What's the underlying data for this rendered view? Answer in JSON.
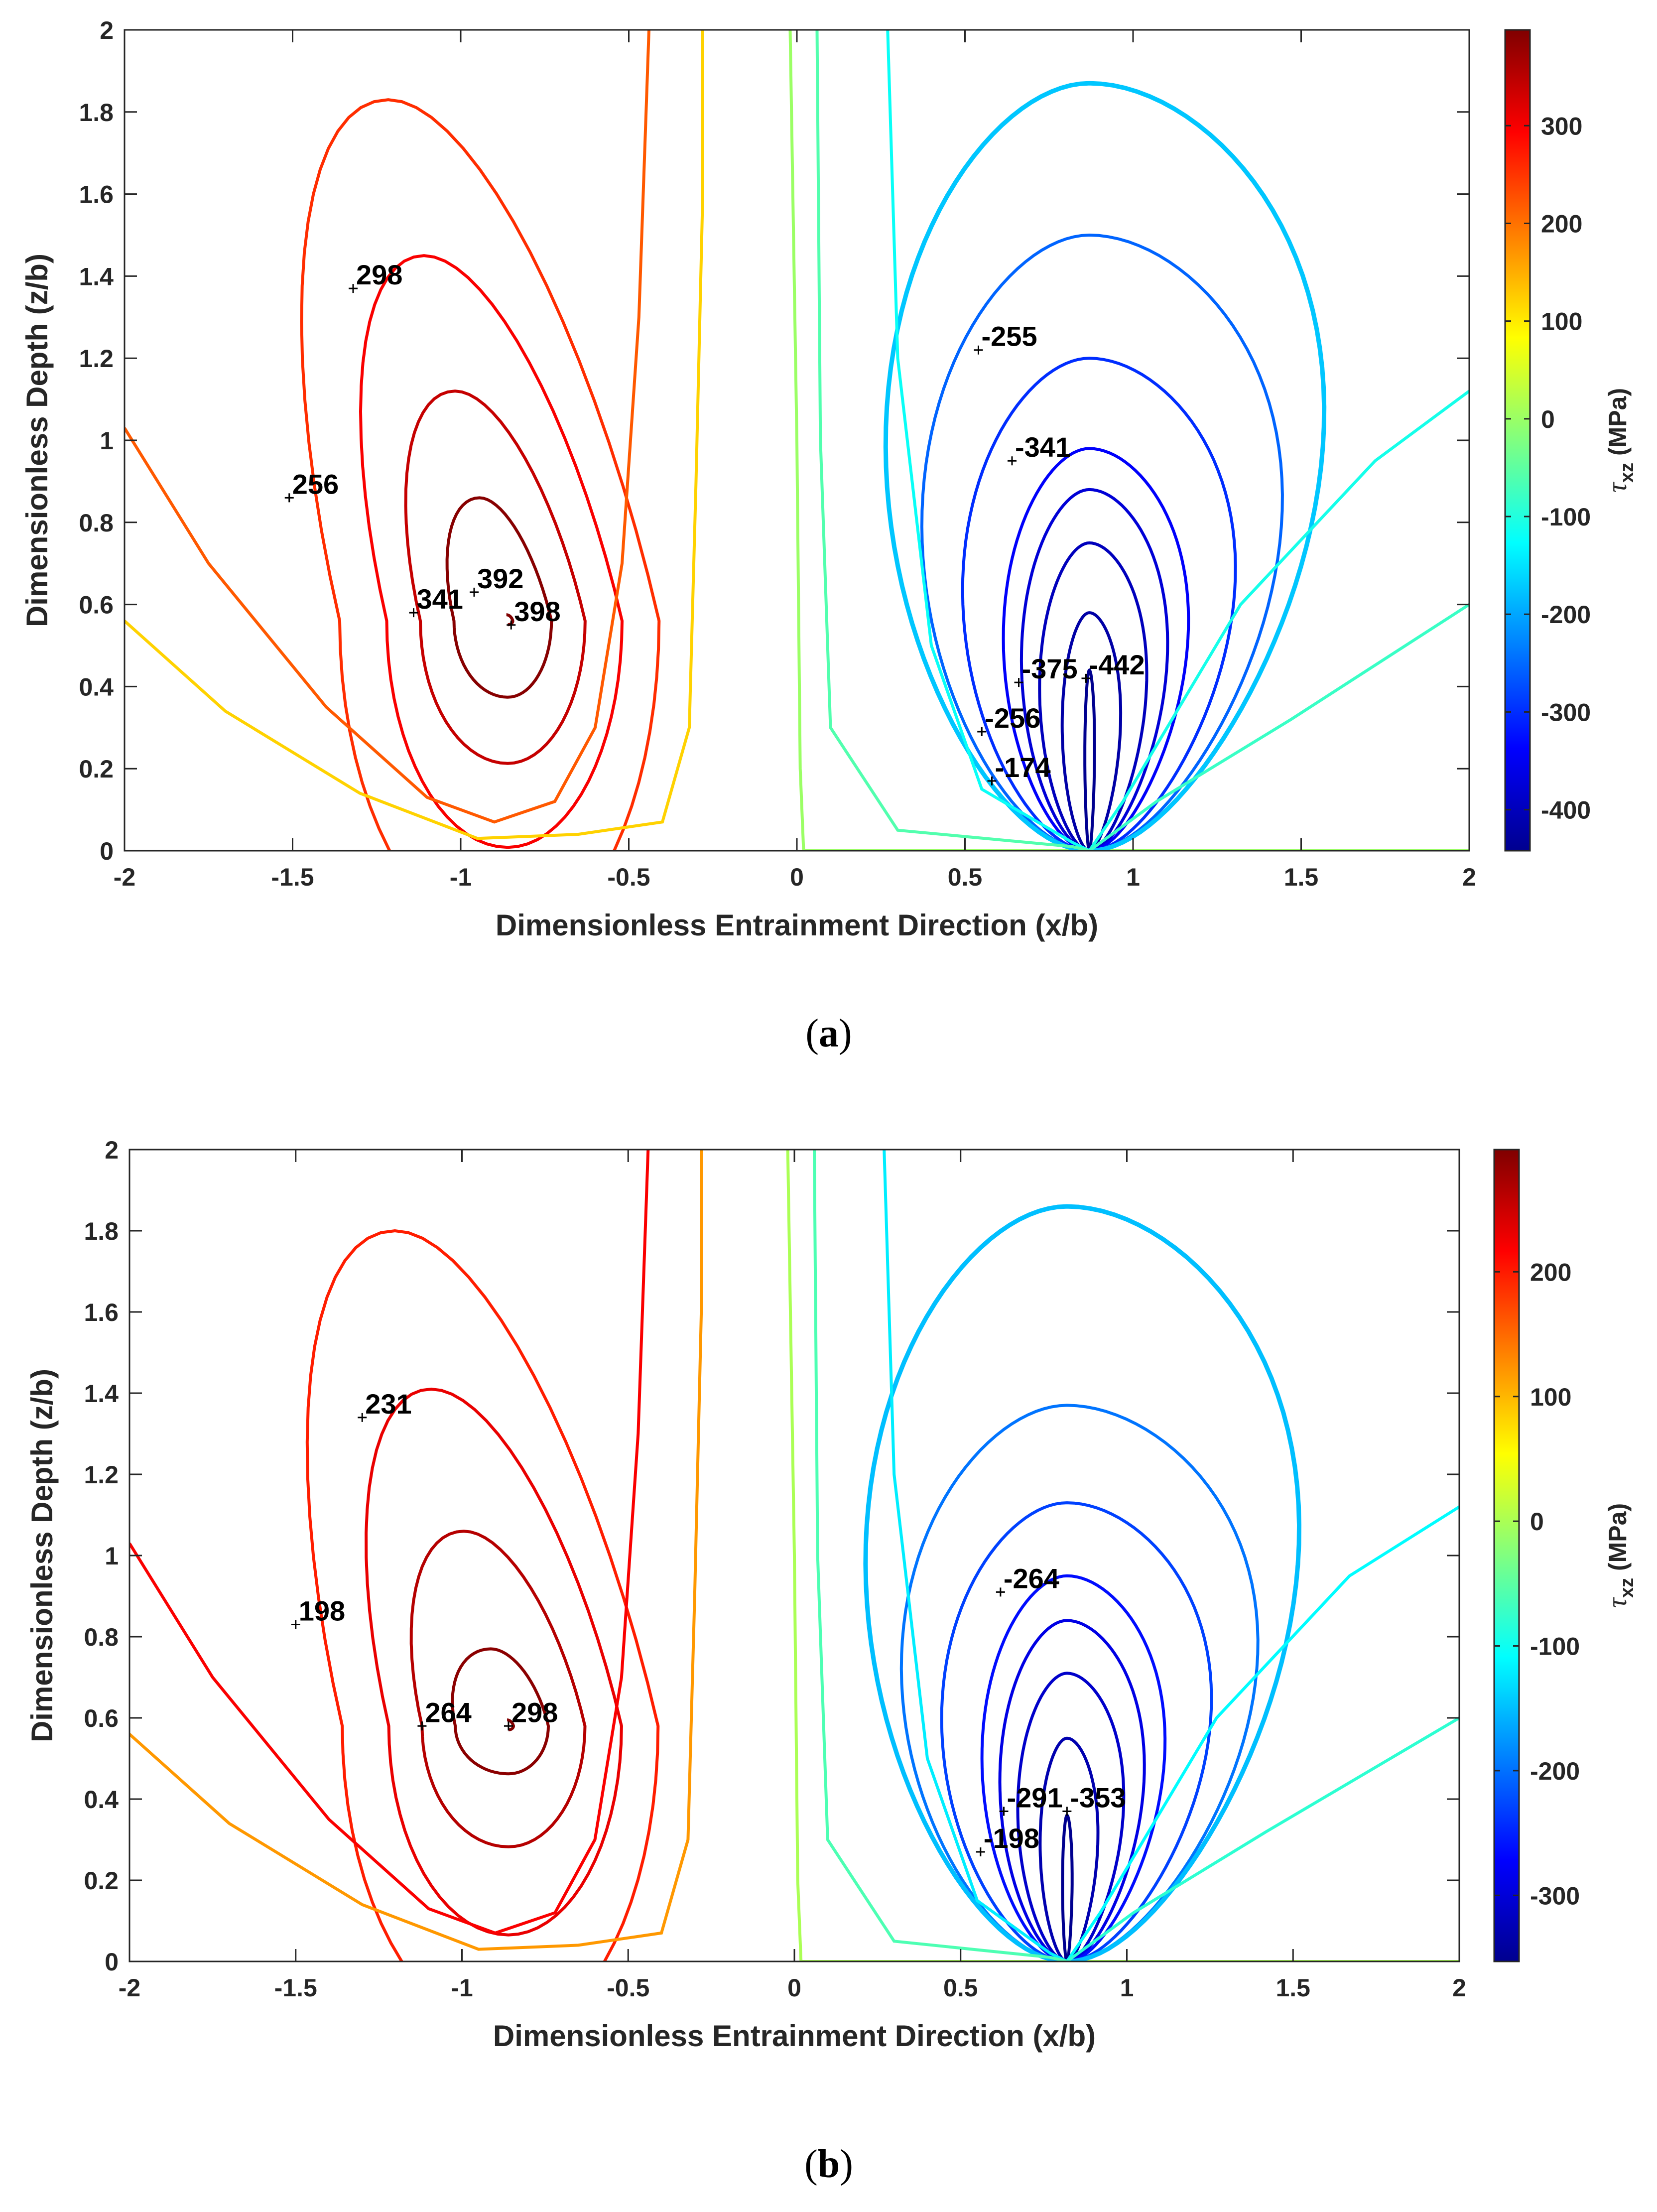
{
  "colors": {
    "axis": "#262626",
    "palette": [
      "#00008f",
      "#0000ff",
      "#0080ff",
      "#00ffff",
      "#80ff80",
      "#ffff00",
      "#ff8000",
      "#ff0000",
      "#800000"
    ]
  },
  "chart_data": [
    {
      "type": "contour",
      "caption": "a",
      "xlabel": "Dimensionless Entrainment Direction (x/b)",
      "ylabel": "Dimensionless Depth (z/b)",
      "xlim": [
        -2,
        2
      ],
      "ylim": [
        0,
        2
      ],
      "xticks": [
        "-2",
        "-1.5",
        "-1",
        "-0.5",
        "0",
        "0.5",
        "1",
        "1.5",
        "2"
      ],
      "yticks": [
        "0",
        "0.2",
        "0.4",
        "0.6",
        "0.8",
        "1",
        "1.2",
        "1.4",
        "1.6",
        "1.8",
        "2"
      ],
      "colorbar": {
        "label": "τxz (MPa)",
        "label_symbol": "τ",
        "label_subscript": "xz",
        "label_unit": "(MPa)",
        "range": [
          -442,
          398
        ],
        "ticks": [
          "300",
          "200",
          "100",
          "0",
          "-100",
          "-200",
          "-300",
          "-400"
        ],
        "tick_values": [
          300,
          200,
          100,
          0,
          -100,
          -200,
          -300,
          -400
        ]
      },
      "contour_labels": [
        {
          "text": "298",
          "x": -1.32,
          "z": 1.37
        },
        {
          "text": "256",
          "x": -1.51,
          "z": 0.86
        },
        {
          "text": "341",
          "x": -1.14,
          "z": 0.58
        },
        {
          "text": "392",
          "x": -0.96,
          "z": 0.63
        },
        {
          "text": "398",
          "x": -0.85,
          "z": 0.55
        },
        {
          "text": "-255",
          "x": 0.54,
          "z": 1.22
        },
        {
          "text": "-341",
          "x": 0.64,
          "z": 0.95
        },
        {
          "text": "-375",
          "x": 0.66,
          "z": 0.41
        },
        {
          "text": "-442",
          "x": 0.86,
          "z": 0.42
        },
        {
          "text": "-256",
          "x": 0.55,
          "z": 0.29
        },
        {
          "text": "-174",
          "x": 0.58,
          "z": 0.17
        }
      ],
      "positive_lobe": {
        "center_x": -0.86,
        "center_z": 0.56,
        "levels": [
          {
            "value": 398,
            "x_left": -0.015,
            "x_right": 0.015,
            "z_top": 0.015
          },
          {
            "value": 392,
            "x_left": 0.16,
            "x_right": 0.13,
            "z_top": 0.3
          },
          {
            "value": 341,
            "x_left": 0.26,
            "x_right": 0.23,
            "z_top": 0.56
          },
          {
            "value": 298,
            "x_left": 0.36,
            "x_right": 0.34,
            "z_top": 0.89
          },
          {
            "value": 256,
            "x_left": 0.5,
            "x_right": 0.45,
            "z_top": 1.27
          }
        ]
      },
      "negative_lobe": {
        "apex_x": 0.87,
        "levels": [
          {
            "value": -442,
            "top": 0.44,
            "half_width": 0.01
          },
          {
            "value": -420,
            "top": 0.58,
            "half_width": 0.06
          },
          {
            "value": -400,
            "top": 0.75,
            "half_width": 0.11
          },
          {
            "value": -375,
            "top": 0.88,
            "half_width": 0.15
          },
          {
            "value": -341,
            "top": 0.98,
            "half_width": 0.19
          },
          {
            "value": -300,
            "top": 1.2,
            "half_width": 0.28
          },
          {
            "value": -255,
            "top": 1.5,
            "half_width": 0.37
          },
          {
            "value": -174,
            "top": 1.87,
            "half_width": 0.45
          }
        ]
      }
    },
    {
      "type": "contour",
      "caption": "b",
      "xlabel": "Dimensionless Entrainment Direction (x/b)",
      "ylabel": "Dimensionless Depth (z/b)",
      "xlim": [
        -2,
        2
      ],
      "ylim": [
        0,
        2
      ],
      "xticks": [
        "-2",
        "-1.5",
        "-1",
        "-0.5",
        "0",
        "0.5",
        "1",
        "1.5",
        "2"
      ],
      "yticks": [
        "0",
        "0.2",
        "0.4",
        "0.6",
        "0.8",
        "1",
        "1.2",
        "1.4",
        "1.6",
        "1.8",
        "2"
      ],
      "colorbar": {
        "label": "τxz (MPa)",
        "label_symbol": "τ",
        "label_subscript": "xz",
        "label_unit": "(MPa)",
        "range": [
          -353,
          298
        ],
        "ticks": [
          "200",
          "100",
          "0",
          "-100",
          "-200",
          "-300"
        ],
        "tick_values": [
          200,
          100,
          0,
          -100,
          -200,
          -300
        ]
      },
      "contour_labels": [
        {
          "text": "231",
          "x": -1.3,
          "z": 1.34
        },
        {
          "text": "198",
          "x": -1.5,
          "z": 0.83
        },
        {
          "text": "264",
          "x": -1.12,
          "z": 0.58
        },
        {
          "text": "298",
          "x": -0.86,
          "z": 0.58
        },
        {
          "text": "-264",
          "x": 0.62,
          "z": 0.91
        },
        {
          "text": "-291",
          "x": 0.63,
          "z": 0.37
        },
        {
          "text": "-353",
          "x": 0.82,
          "z": 0.37
        },
        {
          "text": "-198",
          "x": 0.56,
          "z": 0.27
        }
      ],
      "positive_lobe": {
        "center_x": -0.86,
        "center_z": 0.58,
        "levels": [
          {
            "value": 298,
            "x_left": -0.015,
            "x_right": 0.015,
            "z_top": 0.015
          },
          {
            "value": 291,
            "x_left": 0.16,
            "x_right": 0.12,
            "z_top": 0.19
          },
          {
            "value": 264,
            "x_left": 0.26,
            "x_right": 0.23,
            "z_top": 0.48
          },
          {
            "value": 231,
            "x_left": 0.36,
            "x_right": 0.34,
            "z_top": 0.83
          },
          {
            "value": 198,
            "x_left": 0.5,
            "x_right": 0.45,
            "z_top": 1.22
          }
        ]
      },
      "negative_lobe": {
        "apex_x": 0.82,
        "levels": [
          {
            "value": -353,
            "top": 0.36,
            "half_width": 0.01
          },
          {
            "value": -330,
            "top": 0.55,
            "half_width": 0.06
          },
          {
            "value": -310,
            "top": 0.71,
            "half_width": 0.11
          },
          {
            "value": -291,
            "top": 0.84,
            "half_width": 0.15
          },
          {
            "value": -264,
            "top": 0.95,
            "half_width": 0.19
          },
          {
            "value": -230,
            "top": 1.13,
            "half_width": 0.28
          },
          {
            "value": -198,
            "top": 1.37,
            "half_width": 0.37
          },
          {
            "value": -150,
            "top": 1.86,
            "half_width": 0.45
          }
        ]
      }
    }
  ]
}
